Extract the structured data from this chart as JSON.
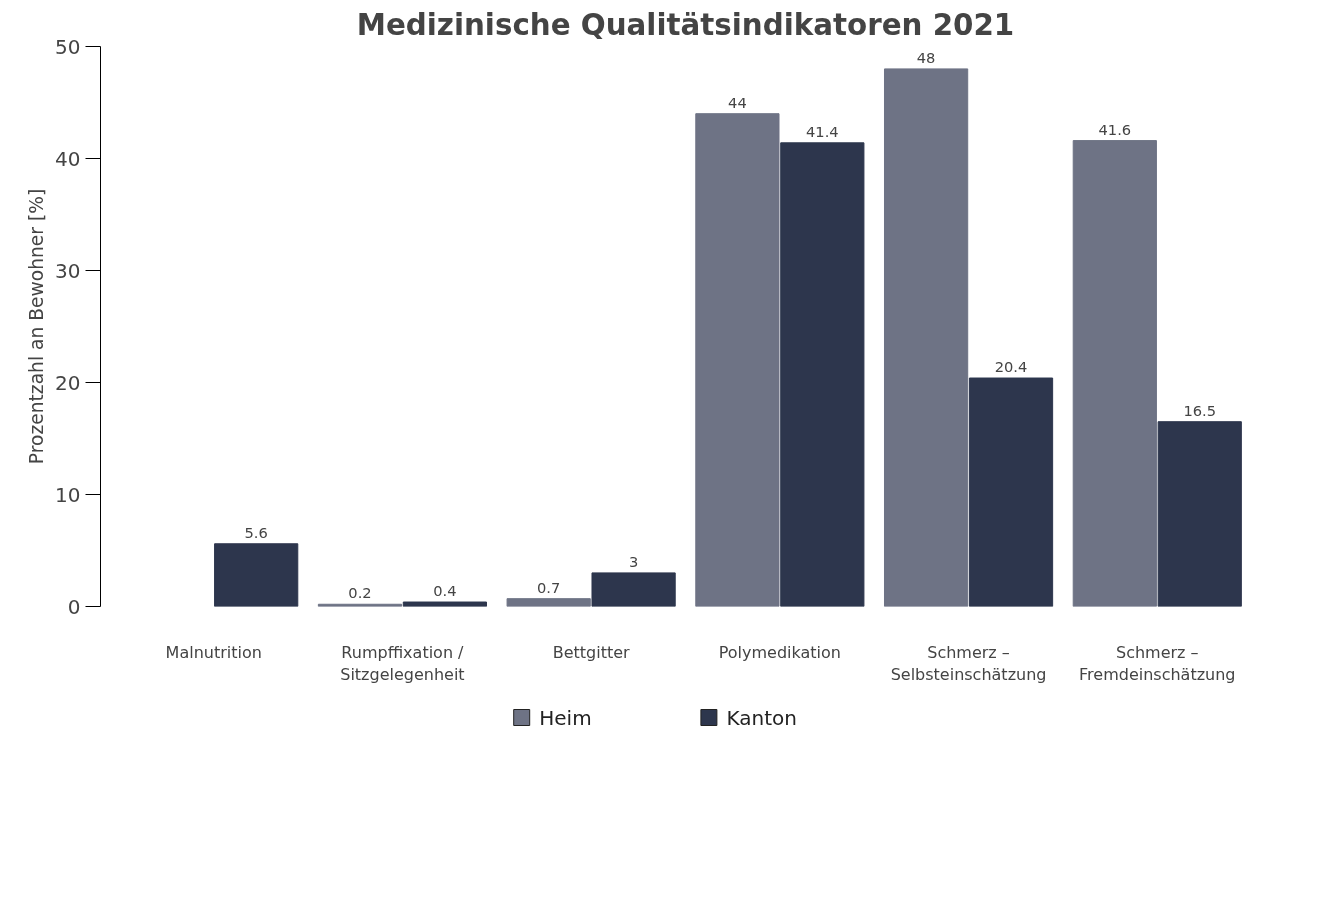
{
  "chart_data": {
    "type": "bar",
    "title": "Medizinische Qualitätsindikatoren 2021",
    "ylabel": "Prozentzahl an Bewohner [%]",
    "categories": [
      "Malnutrition",
      "Rumpffixation /\nSitzgelegenheit",
      "Bettgitter",
      "Polymedikation",
      "Schmerz –\nSelbsteinschätzung",
      "Schmerz –\nFremdeinschätzung"
    ],
    "series": [
      {
        "name": "Heim",
        "color": "#6e7385",
        "values": [
          null,
          0.2,
          0.7,
          44,
          48,
          41.6
        ]
      },
      {
        "name": "Kanton",
        "color": "#2d364d",
        "values": [
          5.6,
          0.4,
          3,
          41.4,
          20.4,
          16.5
        ]
      }
    ],
    "ylim": [
      0,
      50
    ],
    "yticks": [
      0,
      10,
      20,
      30,
      40,
      50
    ],
    "grid": false,
    "legend": "bottom",
    "data_labels": true
  }
}
